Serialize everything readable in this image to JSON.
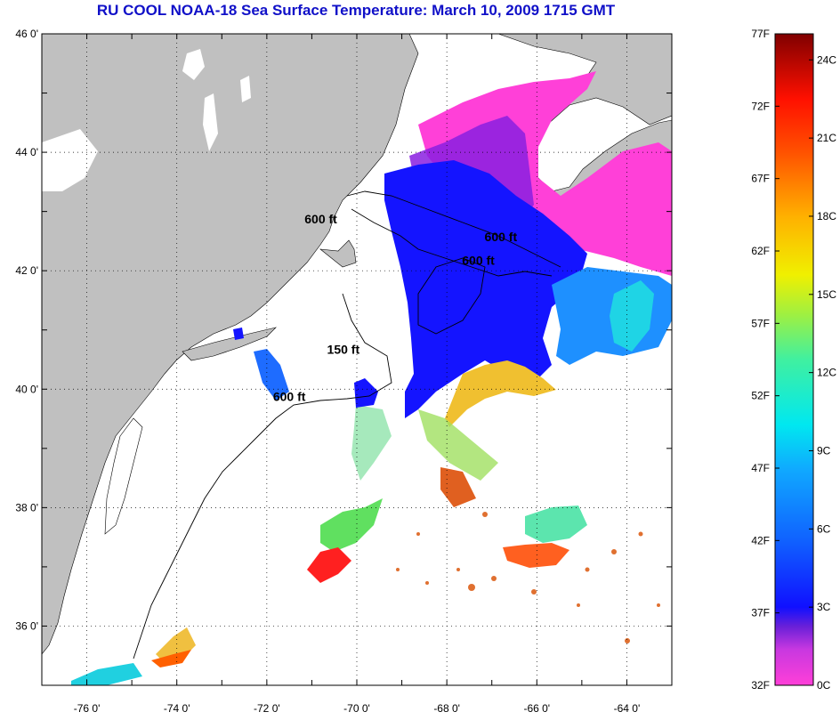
{
  "title": "RU COOL  NOAA-18  Sea Surface Temperature:  March 10, 2009 1715 GMT",
  "map": {
    "lat_ticks": [
      "46 0'",
      "44 0'",
      "42 0'",
      "40 0'",
      "38 0'",
      "36 0'"
    ],
    "lon_ticks": [
      "-76 0'",
      "-74 0'",
      "-72 0'",
      "-70 0'",
      "-68 0'",
      "-66 0'",
      "-64 0'"
    ],
    "lat_range": [
      35,
      46
    ],
    "lon_range": [
      -77,
      -63
    ],
    "land_color": "#c0c0c0",
    "water_no_data_color": "#ffffff",
    "contour_labels": [
      {
        "text": "600 ft",
        "lon": -70.8,
        "lat": 42.8
      },
      {
        "text": "600 ft",
        "lon": -66.8,
        "lat": 42.5
      },
      {
        "text": "600 ft",
        "lon": -67.3,
        "lat": 42.1
      },
      {
        "text": "150 ft",
        "lon": -70.3,
        "lat": 40.6
      },
      {
        "text": "600 ft",
        "lon": -71.5,
        "lat": 39.8
      }
    ]
  },
  "colorbar": {
    "f_labels": [
      "77F",
      "72F",
      "67F",
      "62F",
      "57F",
      "52F",
      "47F",
      "42F",
      "37F",
      "32F"
    ],
    "c_labels": [
      "24C",
      "21C",
      "18C",
      "15C",
      "12C",
      "9C",
      "6C",
      "3C",
      "0C"
    ],
    "f_range": [
      32,
      77
    ],
    "colors": [
      "#ff3fd8",
      "#9b20e0",
      "#1010ff",
      "#0a40ff",
      "#1e90ff",
      "#00e8f0",
      "#40f0a0",
      "#80f040",
      "#f0f000",
      "#ffc000",
      "#ff7000",
      "#ff1000",
      "#d00000",
      "#800000"
    ]
  }
}
